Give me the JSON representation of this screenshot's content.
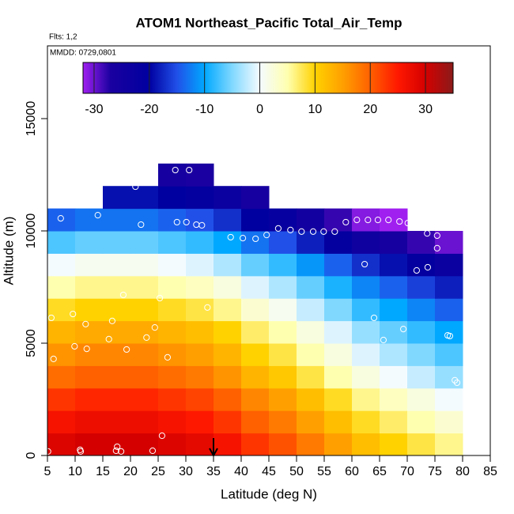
{
  "chart_data": {
    "type": "heatmap",
    "title": "ATOM1 Northeast_Pacific Total_Air_Temp",
    "annotations": [
      "Flts: 1,2",
      "MMDD: 0729,0801"
    ],
    "xlabel": "Latitude (deg N)",
    "ylabel": "Altitude (m)",
    "xlim": [
      5,
      85
    ],
    "xticks": [
      5,
      10,
      15,
      20,
      25,
      30,
      35,
      40,
      45,
      50,
      55,
      60,
      65,
      70,
      75,
      80,
      85
    ],
    "ylim": [
      0,
      18240
    ],
    "yticks": [
      0,
      5000,
      10000,
      15000
    ],
    "x_edges": [
      5,
      10,
      15,
      20,
      25,
      30,
      35,
      40,
      45,
      50,
      55,
      60,
      65,
      70,
      75,
      80
    ],
    "y_edges": [
      0,
      1000,
      2000,
      3000,
      4000,
      5000,
      6000,
      7000,
      8000,
      9000,
      10000,
      11000,
      12000,
      13000
    ],
    "z": [
      [
        29,
        30,
        30,
        30,
        29,
        28,
        26,
        23,
        21,
        18,
        15,
        12,
        10,
        8,
        6
      ],
      [
        26,
        27,
        27,
        27,
        26,
        25,
        23,
        20,
        18,
        15,
        12,
        9,
        7,
        5,
        3
      ],
      [
        23,
        24,
        24,
        24,
        23,
        22,
        20,
        17,
        15,
        12,
        9,
        6,
        4,
        2,
        0
      ],
      [
        19,
        20,
        20,
        20,
        19,
        18,
        16,
        13,
        11,
        8,
        5,
        2,
        0,
        -2,
        -4
      ],
      [
        16,
        17,
        17,
        17,
        16,
        15,
        13,
        10,
        8,
        5,
        2,
        -1,
        -3,
        -5,
        -7
      ],
      [
        13,
        14,
        14,
        14,
        13,
        12,
        10,
        7,
        5,
        2,
        -1,
        -4,
        -6,
        -8,
        -10
      ],
      [
        9,
        10,
        10,
        10,
        9,
        8,
        6,
        3,
        1,
        -2,
        -5,
        -8,
        -10,
        -12,
        -14
      ],
      [
        5,
        6,
        6,
        6,
        5,
        4,
        2,
        -1,
        -3,
        -6,
        -9,
        -12,
        -14,
        -16,
        -18
      ],
      [
        0,
        1,
        1,
        1,
        0,
        -1,
        -3,
        -6,
        -8,
        -11,
        -14,
        -17,
        -19,
        -21,
        -23
      ],
      [
        -7,
        -6,
        -6,
        -6,
        -7,
        -8,
        -10,
        -13,
        -15,
        -18,
        -21,
        -24,
        -26,
        -28,
        -30
      ],
      [
        -14,
        -13,
        -13,
        -13,
        -14,
        -15,
        -17,
        -20,
        -22,
        -25,
        -28,
        -31,
        -33,
        null,
        null
      ],
      [
        null,
        null,
        -19,
        -19,
        -20,
        -21,
        -23,
        -26,
        null,
        null,
        null,
        null,
        null,
        null,
        null
      ],
      [
        null,
        null,
        null,
        null,
        -26,
        -27,
        null,
        null,
        null,
        null,
        null,
        null,
        null,
        null,
        null
      ]
    ],
    "points": {
      "color": "#ffffff",
      "x": [
        5.1,
        5.7,
        6.1,
        7.4,
        7.9,
        9.6,
        9.9,
        11,
        10.9,
        11.9,
        12.1,
        14.1,
        14.1,
        16.1,
        16.7,
        17.6,
        17.4,
        18.3,
        18.7,
        19.3,
        20.9,
        21.9,
        22.9,
        24.4,
        24,
        25.3,
        25.7,
        26.7,
        28.1,
        30.6,
        28.4,
        30.1,
        31.9,
        32.9,
        33.9,
        38.1,
        40.3,
        42.6,
        44.6,
        46.7,
        48.9,
        50.9,
        53,
        54.9,
        56.9,
        58.9,
        60.9,
        62.9,
        64.7,
        66.6,
        67.4,
        68.6,
        70.1,
        62.3,
        64,
        65.7,
        69.3,
        71.7,
        73.7,
        73.6,
        75.4,
        75.4,
        77.3,
        77.7,
        78.6,
        79
      ],
      "y": [
        180,
        6130,
        4300,
        10560,
        11300,
        6300,
        4860,
        180,
        250,
        5850,
        4750,
        11300,
        10700,
        5180,
        5990,
        390,
        210,
        180,
        7150,
        4720,
        11970,
        10280,
        5250,
        5700,
        210,
        7010,
        880,
        4370,
        12710,
        12710,
        10390,
        10390,
        10280,
        10250,
        6590,
        9720,
        9680,
        9650,
        9820,
        10110,
        10040,
        9970,
        9970,
        9970,
        9970,
        10390,
        10490,
        10490,
        10490,
        10490,
        11370,
        10420,
        10350,
        8520,
        6130,
        5140,
        5630,
        8240,
        8380,
        9890,
        9790,
        9230,
        5350,
        5320,
        3350,
        3240
      ]
    },
    "marker": {
      "x": 35,
      "color": "#000000"
    },
    "colorbar": {
      "lim": [
        -32,
        35
      ],
      "ticks": [
        -30,
        -20,
        -10,
        0,
        10,
        20,
        30
      ],
      "stops": [
        [
          -32,
          "#a020f0"
        ],
        [
          -27,
          "#1a00a0"
        ],
        [
          -20,
          "#0000a0"
        ],
        [
          -15,
          "#2050e8"
        ],
        [
          -10,
          "#00a8ff"
        ],
        [
          -5,
          "#80d8ff"
        ],
        [
          0,
          "#f4fbff"
        ],
        [
          5,
          "#ffffb0"
        ],
        [
          10,
          "#ffd200"
        ],
        [
          15,
          "#ffa000"
        ],
        [
          20,
          "#ff6000"
        ],
        [
          25,
          "#ff1800"
        ],
        [
          30,
          "#d40000"
        ],
        [
          35,
          "#8b1a1a"
        ]
      ]
    }
  }
}
